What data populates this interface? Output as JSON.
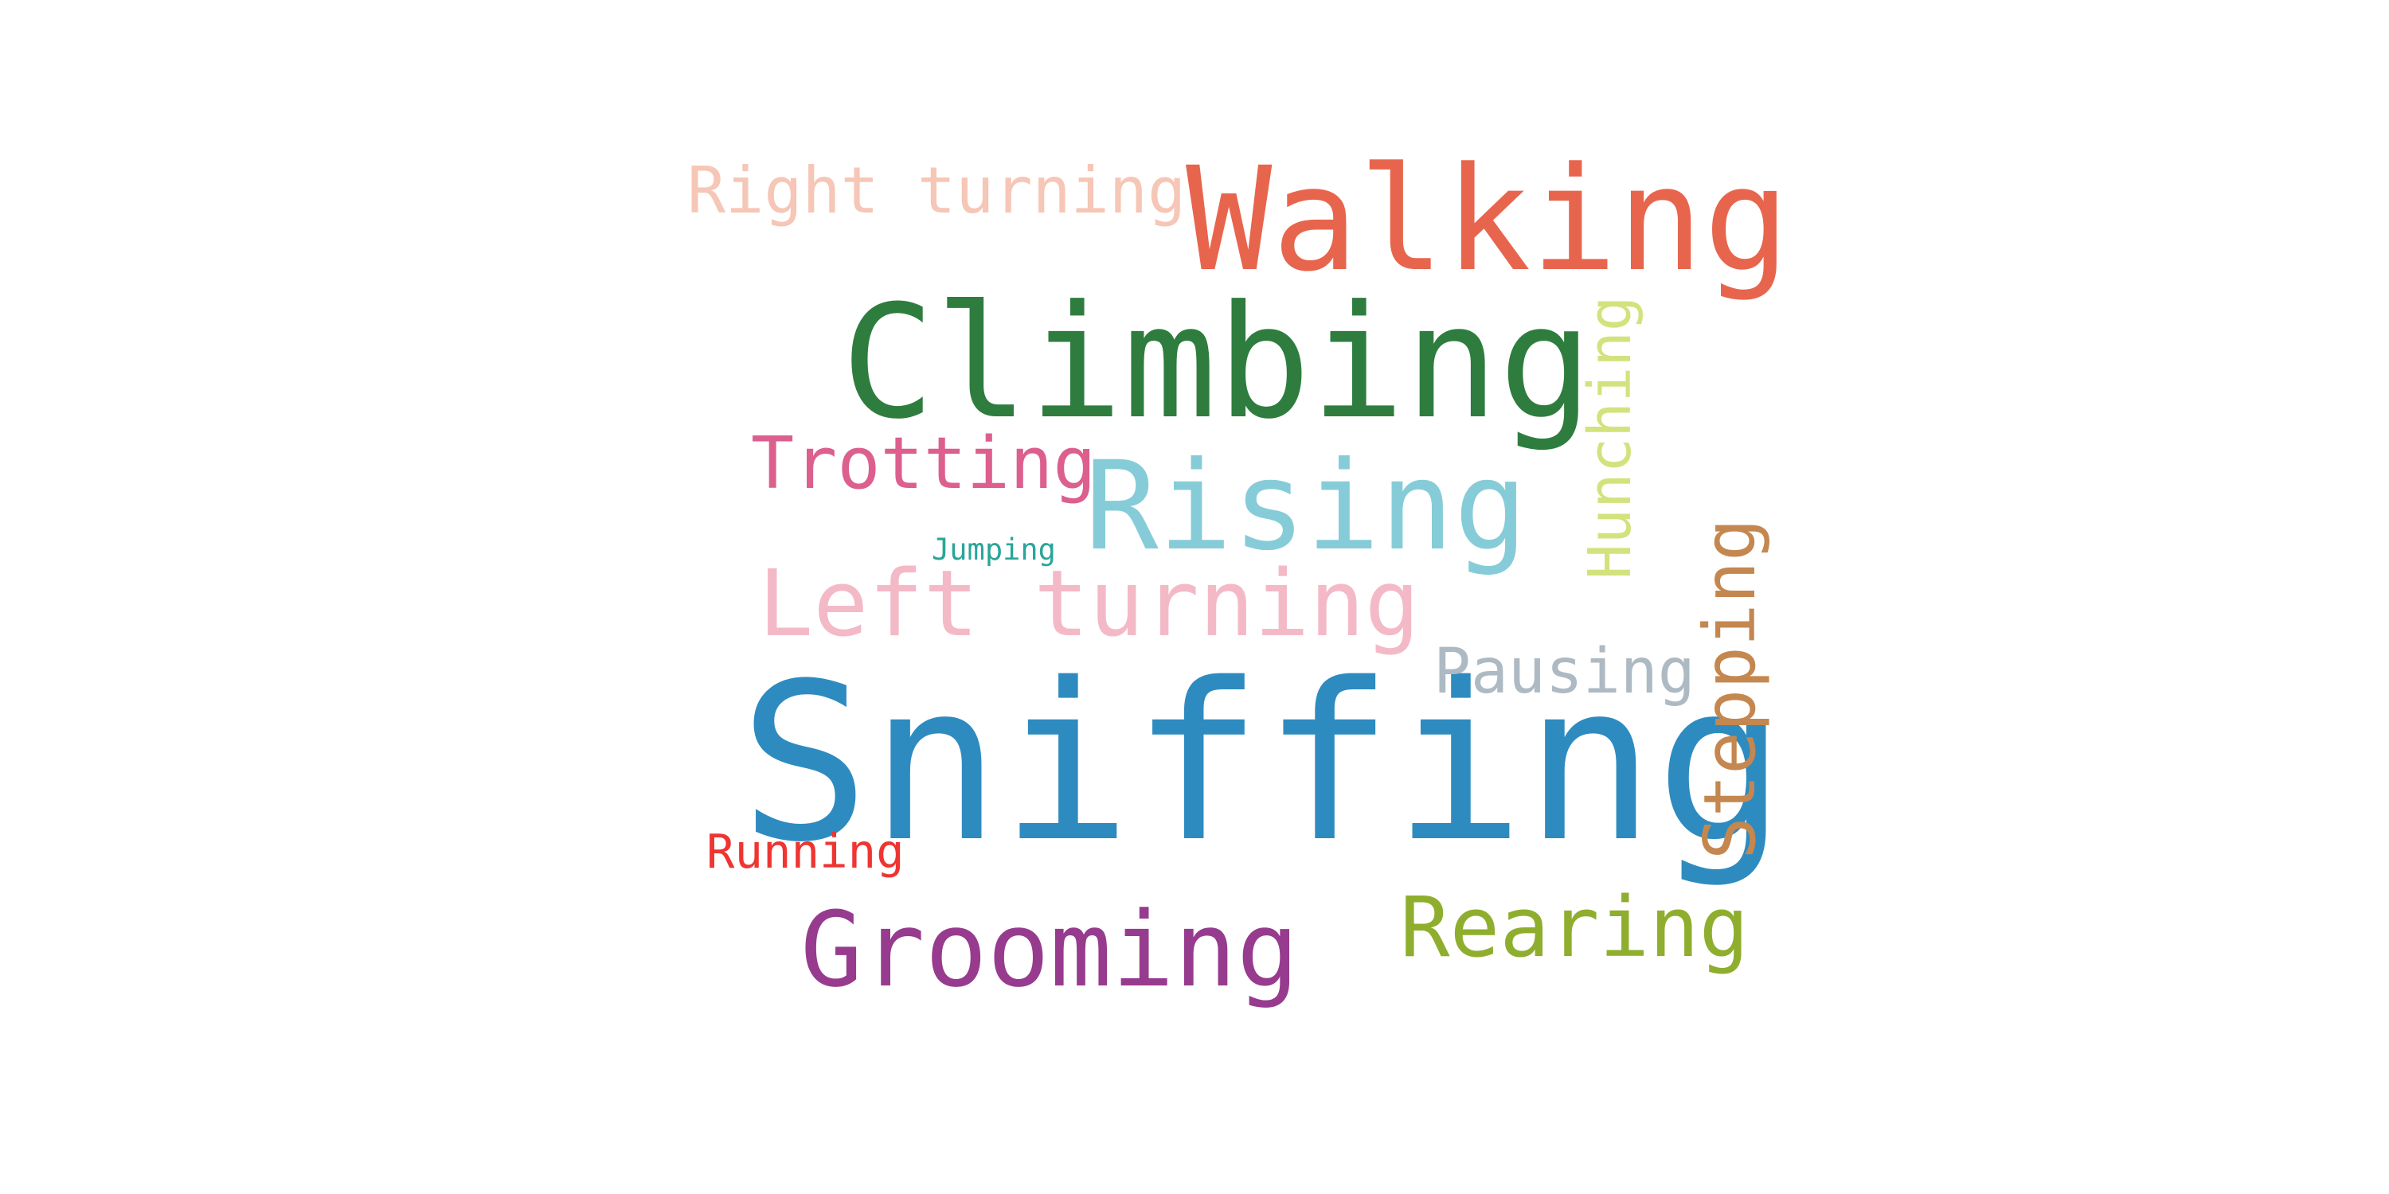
{
  "word_cloud": {
    "words": [
      {
        "text": "Sniffing",
        "color": "#2e8bc0",
        "orientation": "horizontal"
      },
      {
        "text": "Climbing",
        "color": "#2e7d3e",
        "orientation": "horizontal"
      },
      {
        "text": "Walking",
        "color": "#e8654d",
        "orientation": "horizontal"
      },
      {
        "text": "Rising",
        "color": "#86ccd8",
        "orientation": "horizontal"
      },
      {
        "text": "Grooming",
        "color": "#973b8e",
        "orientation": "horizontal"
      },
      {
        "text": "Left turning",
        "color": "#f4b9c7",
        "orientation": "horizontal"
      },
      {
        "text": "Rearing",
        "color": "#8fae2e",
        "orientation": "horizontal"
      },
      {
        "text": "Trotting",
        "color": "#dc5f8e",
        "orientation": "horizontal"
      },
      {
        "text": "Right turning",
        "color": "#f6c6b6",
        "orientation": "horizontal"
      },
      {
        "text": "Pausing",
        "color": "#adbac3",
        "orientation": "horizontal"
      },
      {
        "text": "Running",
        "color": "#ee3532",
        "orientation": "horizontal"
      },
      {
        "text": "Jumping",
        "color": "#2aa59a",
        "orientation": "horizontal"
      },
      {
        "text": "Stepping",
        "color": "#c4874f",
        "orientation": "vertical"
      },
      {
        "text": "Hunching",
        "color": "#d4e27d",
        "orientation": "vertical"
      }
    ]
  }
}
